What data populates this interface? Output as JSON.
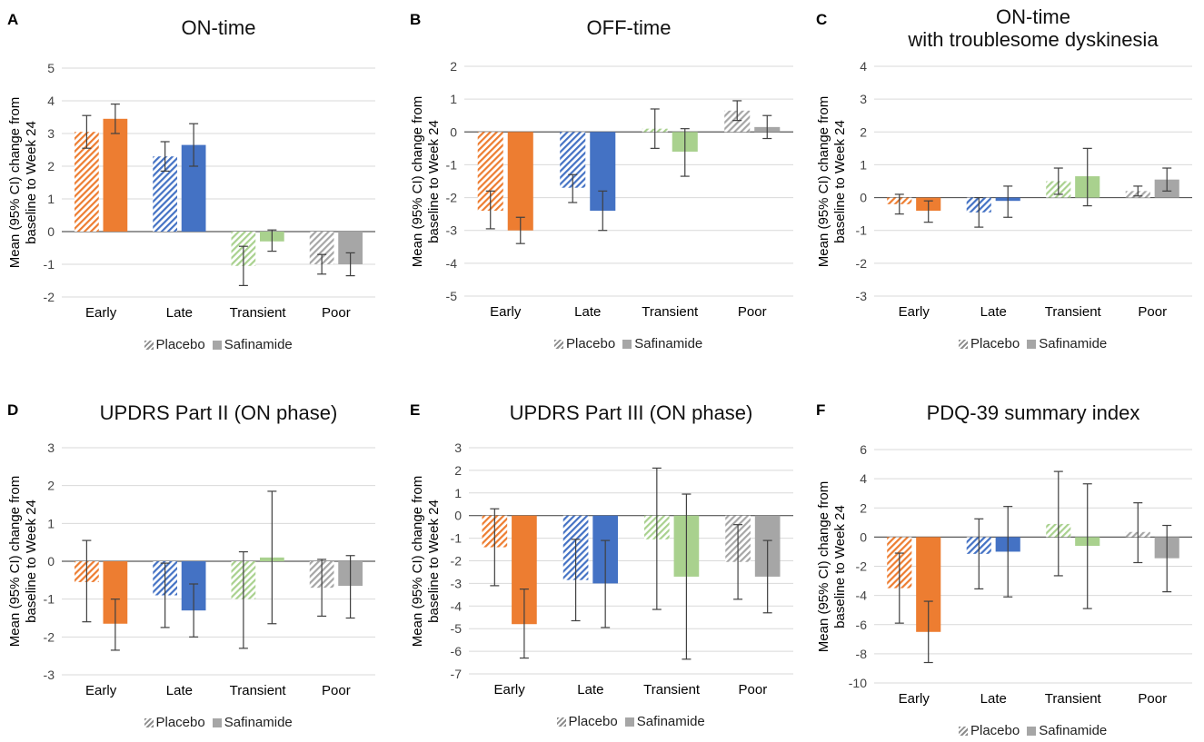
{
  "legend": {
    "placebo": "Placebo",
    "safinamide": "Safinamide"
  },
  "colors": {
    "Early": "#ED7D31",
    "Late": "#4472C4",
    "Transient": "#A9D18E",
    "Poor": "#A6A6A6"
  },
  "chart_data": [
    {
      "type": "bar",
      "letter": "A",
      "title": "ON-time",
      "ylabel": "Mean (95% CI) change from baseline to Week 24",
      "categories": [
        "Early",
        "Late",
        "Transient",
        "Poor"
      ],
      "ylim": [
        -2,
        5
      ],
      "yticks": [
        "-2",
        "-1",
        "0",
        "1",
        "2",
        "3",
        "4",
        "5"
      ],
      "series": [
        {
          "name": "Placebo",
          "values": [
            3.05,
            2.3,
            -1.05,
            -1.0
          ],
          "ci": [
            [
              2.55,
              3.55
            ],
            [
              1.85,
              2.75
            ],
            [
              -1.65,
              -0.45
            ],
            [
              -1.3,
              -0.7
            ]
          ]
        },
        {
          "name": "Safinamide",
          "values": [
            3.45,
            2.65,
            -0.3,
            -1.0
          ],
          "ci": [
            [
              3.0,
              3.9
            ],
            [
              2.0,
              3.3
            ],
            [
              -0.6,
              0.05
            ],
            [
              -1.35,
              -0.65
            ]
          ]
        }
      ]
    },
    {
      "type": "bar",
      "letter": "B",
      "title": "OFF-time",
      "ylabel": "Mean (95% CI) change from baseline to Week 24",
      "categories": [
        "Early",
        "Late",
        "Transient",
        "Poor"
      ],
      "ylim": [
        -5,
        2
      ],
      "yticks": [
        "-5",
        "-4",
        "-3",
        "-2",
        "-1",
        "0",
        "1",
        "2"
      ],
      "series": [
        {
          "name": "Placebo",
          "values": [
            -2.4,
            -1.7,
            0.1,
            0.65
          ],
          "ci": [
            [
              -2.95,
              -1.8
            ],
            [
              -2.15,
              -1.3
            ],
            [
              -0.5,
              0.7
            ],
            [
              0.35,
              0.95
            ]
          ]
        },
        {
          "name": "Safinamide",
          "values": [
            -3.0,
            -2.4,
            -0.6,
            0.15
          ],
          "ci": [
            [
              -3.4,
              -2.6
            ],
            [
              -3.0,
              -1.8
            ],
            [
              -1.35,
              0.1
            ],
            [
              -0.2,
              0.5
            ]
          ]
        }
      ]
    },
    {
      "type": "bar",
      "letter": "C",
      "title": "ON-time\nwith troublesome dyskinesia",
      "ylabel": "Mean (95% CI) change from baseline to Week 24",
      "categories": [
        "Early",
        "Late",
        "Transient",
        "Poor"
      ],
      "ylim": [
        -3,
        4
      ],
      "yticks": [
        "-3",
        "-2",
        "-1",
        "0",
        "1",
        "2",
        "3",
        "4"
      ],
      "series": [
        {
          "name": "Placebo",
          "values": [
            -0.2,
            -0.45,
            0.5,
            0.2
          ],
          "ci": [
            [
              -0.5,
              0.1
            ],
            [
              -0.9,
              0.0
            ],
            [
              0.1,
              0.9
            ],
            [
              0.05,
              0.35
            ]
          ]
        },
        {
          "name": "Safinamide",
          "values": [
            -0.4,
            -0.1,
            0.65,
            0.55
          ],
          "ci": [
            [
              -0.75,
              -0.1
            ],
            [
              -0.6,
              0.35
            ],
            [
              -0.25,
              1.5
            ],
            [
              0.2,
              0.9
            ]
          ]
        }
      ]
    },
    {
      "type": "bar",
      "letter": "D",
      "title": "UPDRS Part II (ON phase)",
      "ylabel": "Mean (95% CI) change from baseline to Week 24",
      "categories": [
        "Early",
        "Late",
        "Transient",
        "Poor"
      ],
      "ylim": [
        -3,
        3
      ],
      "yticks": [
        "-3",
        "-2",
        "-1",
        "0",
        "1",
        "2",
        "3"
      ],
      "series": [
        {
          "name": "Placebo",
          "values": [
            -0.55,
            -0.9,
            -1.0,
            -0.7
          ],
          "ci": [
            [
              -1.6,
              0.55
            ],
            [
              -1.75,
              -0.05
            ],
            [
              -2.3,
              0.25
            ],
            [
              -1.45,
              0.05
            ]
          ]
        },
        {
          "name": "Safinamide",
          "values": [
            -1.65,
            -1.3,
            0.1,
            -0.65
          ],
          "ci": [
            [
              -2.35,
              -1.0
            ],
            [
              -2.0,
              -0.6
            ],
            [
              -1.65,
              1.85
            ],
            [
              -1.5,
              0.15
            ]
          ]
        }
      ]
    },
    {
      "type": "bar",
      "letter": "E",
      "title": "UPDRS Part III (ON phase)",
      "ylabel": "Mean (95% CI) change from baseline to Week 24",
      "categories": [
        "Early",
        "Late",
        "Transient",
        "Poor"
      ],
      "ylim": [
        -7,
        3
      ],
      "yticks": [
        "-7",
        "-6",
        "-5",
        "-4",
        "-3",
        "-2",
        "-1",
        "0",
        "1",
        "2",
        "3"
      ],
      "series": [
        {
          "name": "Placebo",
          "values": [
            -1.4,
            -2.85,
            -1.05,
            -2.05
          ],
          "ci": [
            [
              -3.1,
              0.3
            ],
            [
              -4.65,
              -1.05
            ],
            [
              -4.15,
              2.1
            ],
            [
              -3.7,
              -0.4
            ]
          ]
        },
        {
          "name": "Safinamide",
          "values": [
            -4.8,
            -3.0,
            -2.7,
            -2.7
          ],
          "ci": [
            [
              -6.3,
              -3.25
            ],
            [
              -4.95,
              -1.1
            ],
            [
              -6.35,
              0.95
            ],
            [
              -4.3,
              -1.1
            ]
          ]
        }
      ]
    },
    {
      "type": "bar",
      "letter": "F",
      "title": "PDQ-39 summary index",
      "ylabel": "Mean (95% CI) change from baseline to Week 24",
      "categories": [
        "Early",
        "Late",
        "Transient",
        "Poor"
      ],
      "ylim": [
        -10,
        6
      ],
      "yticks": [
        "-10",
        "-8",
        "-6",
        "-4",
        "-2",
        "0",
        "2",
        "4",
        "6"
      ],
      "series": [
        {
          "name": "Placebo",
          "values": [
            -3.5,
            -1.15,
            0.9,
            0.35
          ],
          "ci": [
            [
              -5.9,
              -1.1
            ],
            [
              -3.55,
              1.25
            ],
            [
              -2.65,
              4.5
            ],
            [
              -1.75,
              2.35
            ]
          ]
        },
        {
          "name": "Safinamide",
          "values": [
            -6.5,
            -1.0,
            -0.6,
            -1.45
          ],
          "ci": [
            [
              -8.6,
              -4.4
            ],
            [
              -4.1,
              2.1
            ],
            [
              -4.9,
              3.65
            ],
            [
              -3.75,
              0.8
            ]
          ]
        }
      ]
    }
  ]
}
